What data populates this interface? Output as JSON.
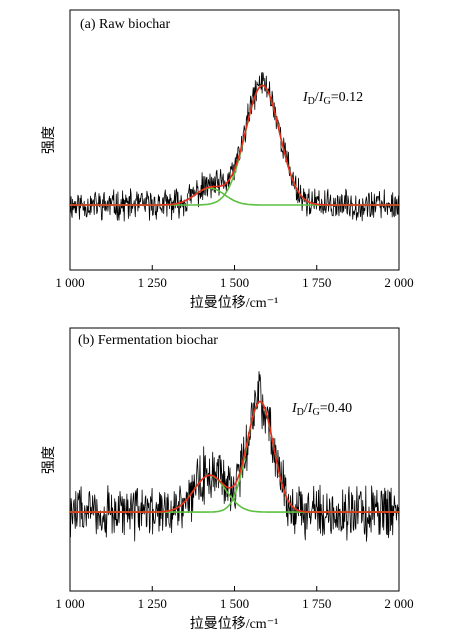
{
  "chart_data": [
    {
      "type": "line",
      "title": "(a)  Raw biochar",
      "xlabel": "拉曼位移/cm⁻¹",
      "ylabel": "强度",
      "xlim": [
        1000,
        2000
      ],
      "ylim": [
        0,
        1
      ],
      "xticks": [
        1000,
        1250,
        1500,
        1750,
        2000
      ],
      "xtick_labels": [
        "1 000",
        "1 250",
        "1 500",
        "1 750",
        "2 000"
      ],
      "yticks_shown": false,
      "annotation": {
        "prefix_I": "I",
        "sub1": "D",
        "slash": "/",
        "sub2": "G",
        "value": "=0.12"
      },
      "baseline": 0.25,
      "noise_amplitude": 0.05,
      "series": [
        {
          "role": "raw",
          "color": "#000000",
          "peaks": [
            {
              "center": 1425,
              "height": 0.07,
              "width": 45
            },
            {
              "center": 1585,
              "height": 0.47,
              "width": 52
            }
          ]
        },
        {
          "role": "fit-d",
          "color": "#5cc040",
          "peaks": [
            {
              "center": 1425,
              "height": 0.065,
              "width": 45
            }
          ]
        },
        {
          "role": "fit-g",
          "color": "#5cc040",
          "peaks": [
            {
              "center": 1585,
              "height": 0.46,
              "width": 52
            }
          ]
        },
        {
          "role": "fit-sum",
          "color": "#e82c1c",
          "peaks": [
            {
              "center": 1425,
              "height": 0.065,
              "width": 45
            },
            {
              "center": 1585,
              "height": 0.46,
              "width": 52
            }
          ]
        }
      ]
    },
    {
      "type": "line",
      "title": "(b)  Fermentation biochar",
      "xlabel": "拉曼位移/cm⁻¹",
      "ylabel": "强度",
      "xlim": [
        1000,
        2000
      ],
      "ylim": [
        0,
        1
      ],
      "xticks": [
        1000,
        1250,
        1500,
        1750,
        2000
      ],
      "xtick_labels": [
        "1 000",
        "1 250",
        "1 500",
        "1 750",
        "2 000"
      ],
      "yticks_shown": false,
      "annotation": {
        "prefix_I": "I",
        "sub1": "D",
        "slash": "/",
        "sub2": "G",
        "value": "=0.40"
      },
      "baseline": 0.3,
      "noise_amplitude": 0.09,
      "series": [
        {
          "role": "raw",
          "color": "#000000",
          "peaks": [
            {
              "center": 1425,
              "height": 0.15,
              "width": 48
            },
            {
              "center": 1578,
              "height": 0.43,
              "width": 40
            }
          ]
        },
        {
          "role": "fit-d",
          "color": "#5cc040",
          "peaks": [
            {
              "center": 1425,
              "height": 0.14,
              "width": 48
            }
          ]
        },
        {
          "role": "fit-g",
          "color": "#5cc040",
          "peaks": [
            {
              "center": 1578,
              "height": 0.42,
              "width": 40
            }
          ]
        },
        {
          "role": "fit-sum",
          "color": "#e82c1c",
          "peaks": [
            {
              "center": 1425,
              "height": 0.14,
              "width": 48
            },
            {
              "center": 1578,
              "height": 0.42,
              "width": 40
            }
          ]
        }
      ]
    }
  ]
}
